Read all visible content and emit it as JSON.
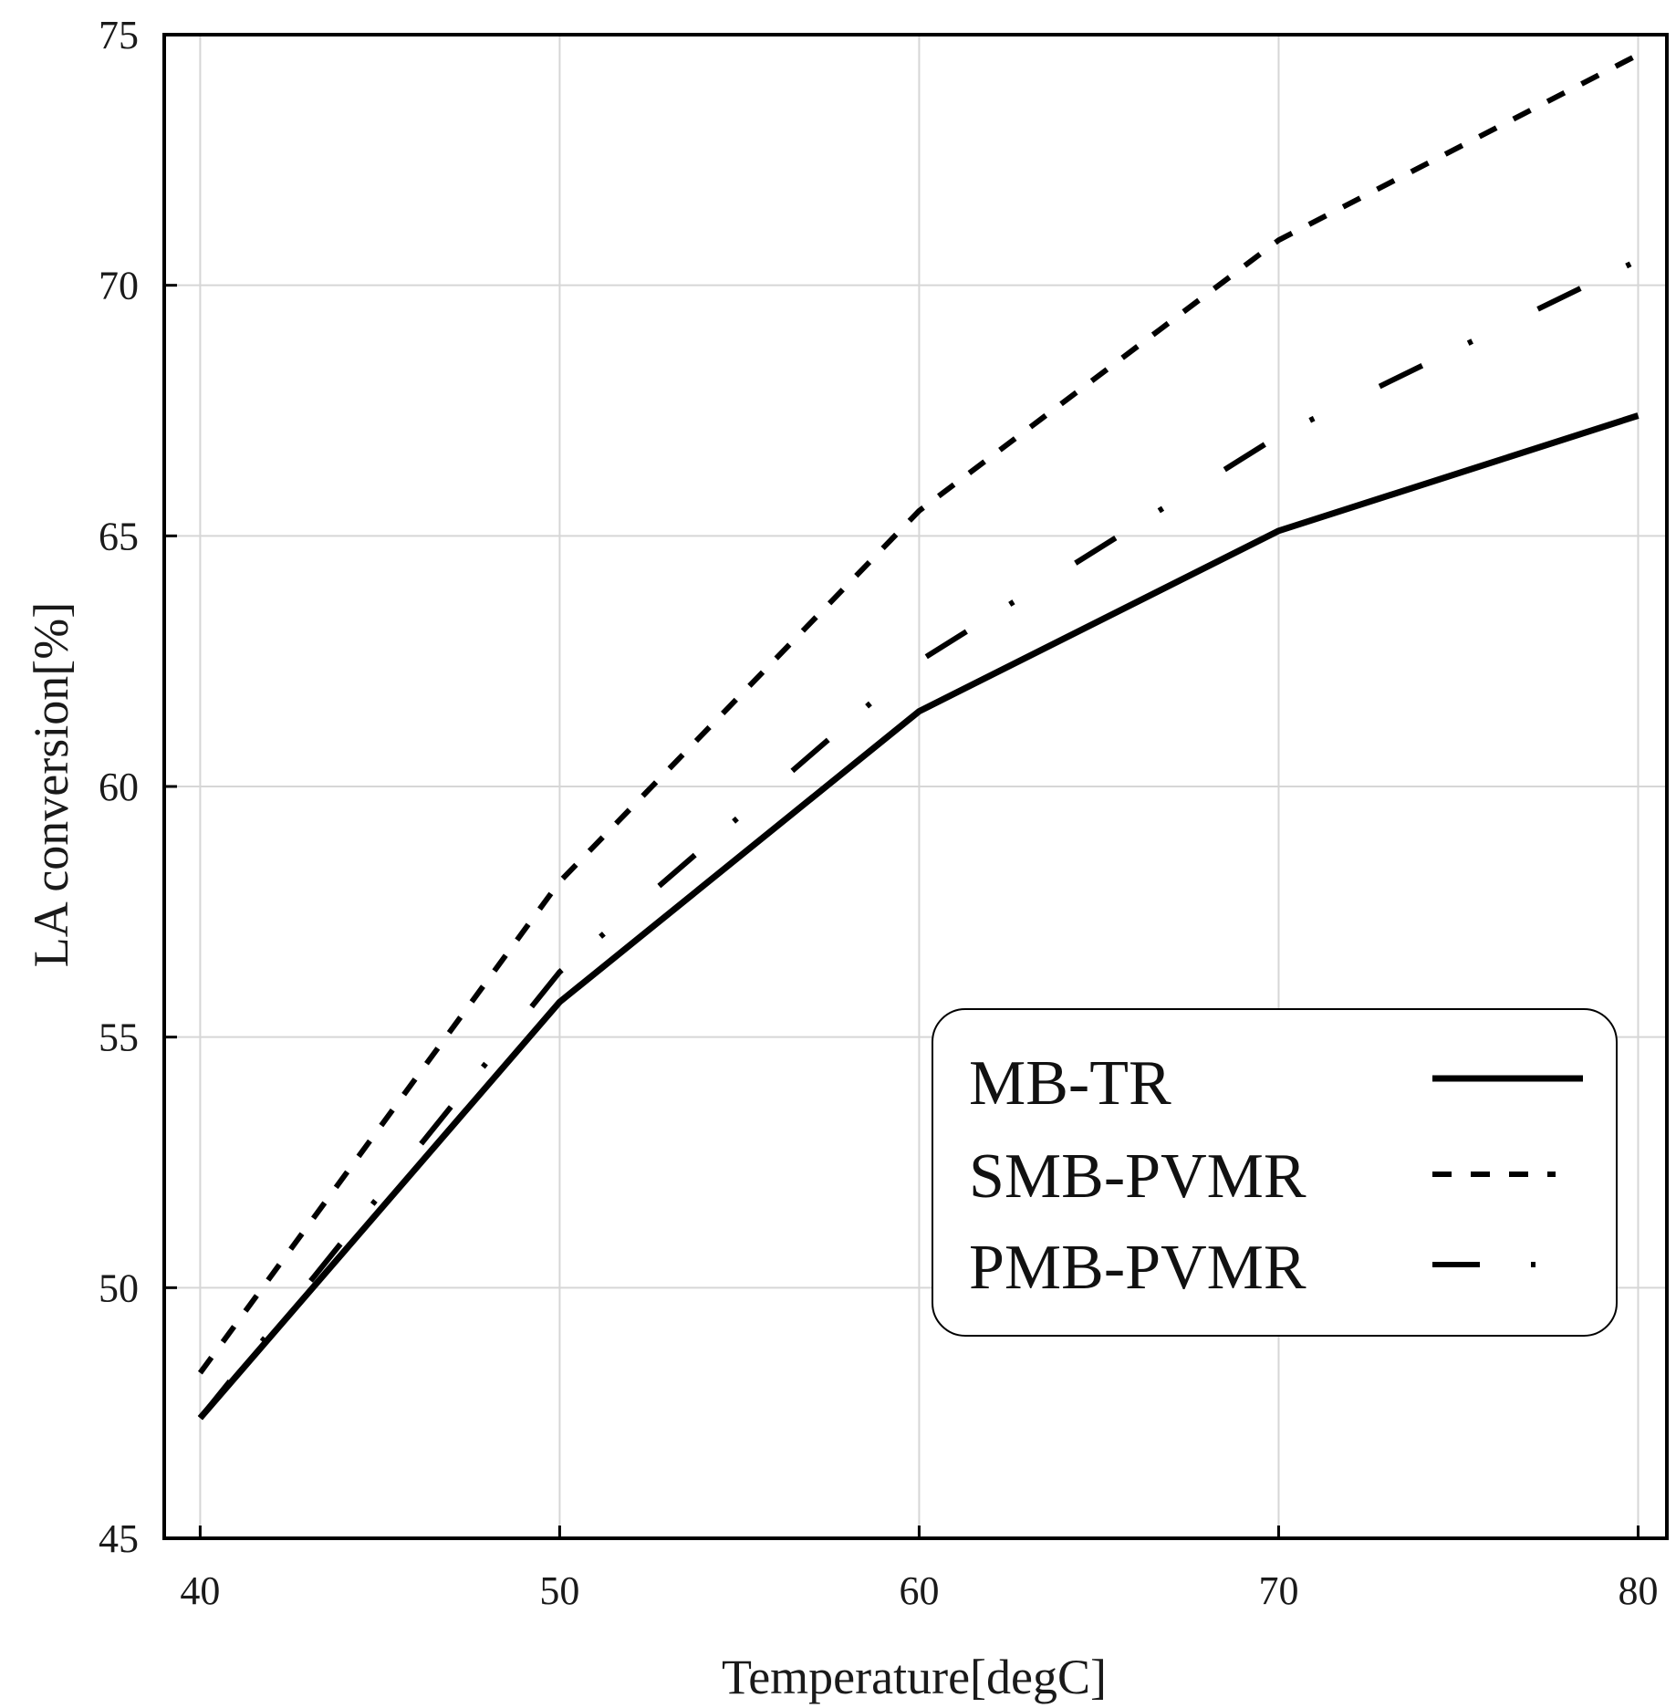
{
  "chart_data": {
    "type": "line",
    "title": "",
    "xlabel": "Temperature[degC]",
    "ylabel": "LA conversion[%]",
    "x": [
      40,
      50,
      60,
      70,
      80
    ],
    "xlim": [
      39,
      80.8
    ],
    "ylim": [
      45,
      75
    ],
    "xticks": [
      40,
      50,
      60,
      70,
      80
    ],
    "yticks": [
      45,
      50,
      55,
      60,
      65,
      70,
      75
    ],
    "grid": true,
    "legend_position": "lower-right",
    "series": [
      {
        "name": "MB-TR",
        "style": "solid",
        "values": [
          47.4,
          55.7,
          61.5,
          65.1,
          67.4
        ]
      },
      {
        "name": "SMB-PVMR",
        "style": "dashed",
        "values": [
          48.3,
          58.1,
          65.5,
          70.9,
          74.6
        ]
      },
      {
        "name": "PMB-PVMR",
        "style": "dashdot",
        "values": [
          47.4,
          56.3,
          62.5,
          67.0,
          70.5
        ]
      }
    ]
  }
}
